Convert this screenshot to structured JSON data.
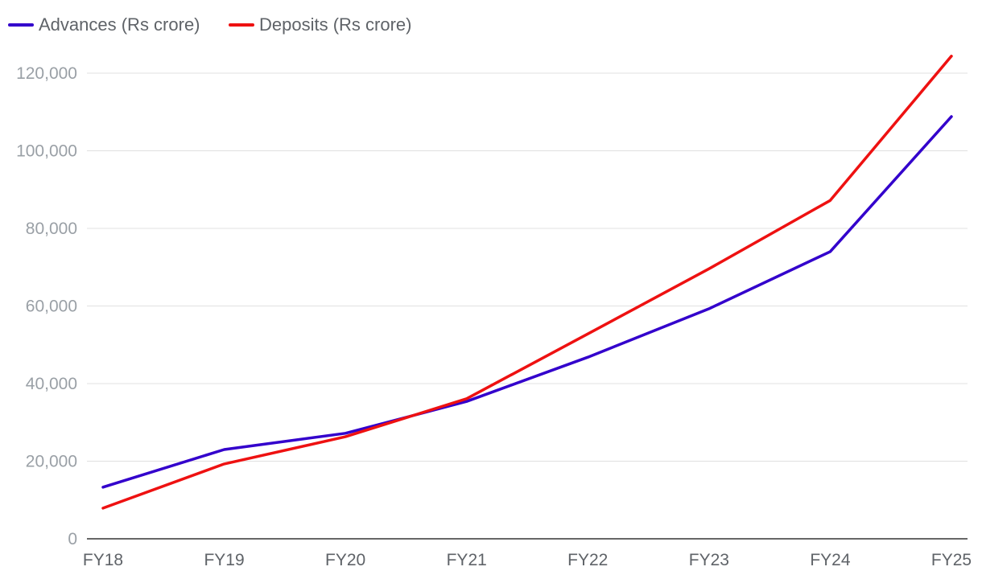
{
  "chart_data": {
    "type": "line",
    "categories": [
      "FY18",
      "FY19",
      "FY20",
      "FY21",
      "FY22",
      "FY23",
      "FY24",
      "FY25"
    ],
    "series": [
      {
        "name": "Advances (Rs crore)",
        "color": "#3300cc",
        "values": [
          13300,
          23000,
          27200,
          35400,
          46800,
          59300,
          74000,
          108800
        ]
      },
      {
        "name": "Deposits (Rs crore)",
        "color": "#ee1111",
        "values": [
          7900,
          19300,
          26300,
          36100,
          52800,
          69600,
          87200,
          124400
        ]
      }
    ],
    "yticks": [
      "0",
      "20,000",
      "40,000",
      "60,000",
      "80,000",
      "100,000",
      "120,000"
    ],
    "ytick_values": [
      0,
      20000,
      40000,
      60000,
      80000,
      100000,
      120000
    ],
    "ylim": [
      0,
      120000
    ],
    "grid": true,
    "legend_position": "top-left"
  }
}
